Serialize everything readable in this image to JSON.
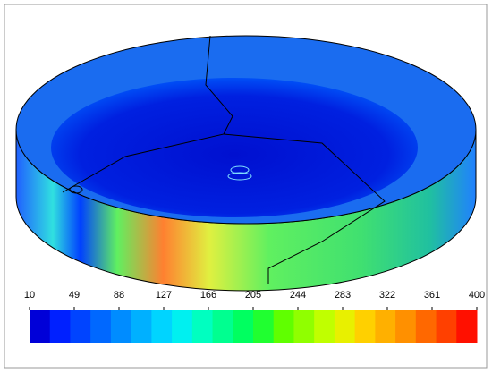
{
  "chart_data": {
    "type": "colorbar",
    "xlim": [
      10,
      400
    ],
    "xticks": [
      10,
      49,
      88,
      127,
      166,
      205,
      244,
      283,
      322,
      361,
      400
    ],
    "colors": [
      "#0000d8",
      "#0020ff",
      "#0044ff",
      "#0068ff",
      "#008cff",
      "#00b0ff",
      "#00d4ff",
      "#00f0f0",
      "#00ffc0",
      "#00ff90",
      "#00ff60",
      "#20ff30",
      "#60ff00",
      "#90ff00",
      "#c0ff00",
      "#e8f000",
      "#ffd000",
      "#ffb000",
      "#ff9000",
      "#ff6800",
      "#ff4000",
      "#ff1000"
    ]
  }
}
